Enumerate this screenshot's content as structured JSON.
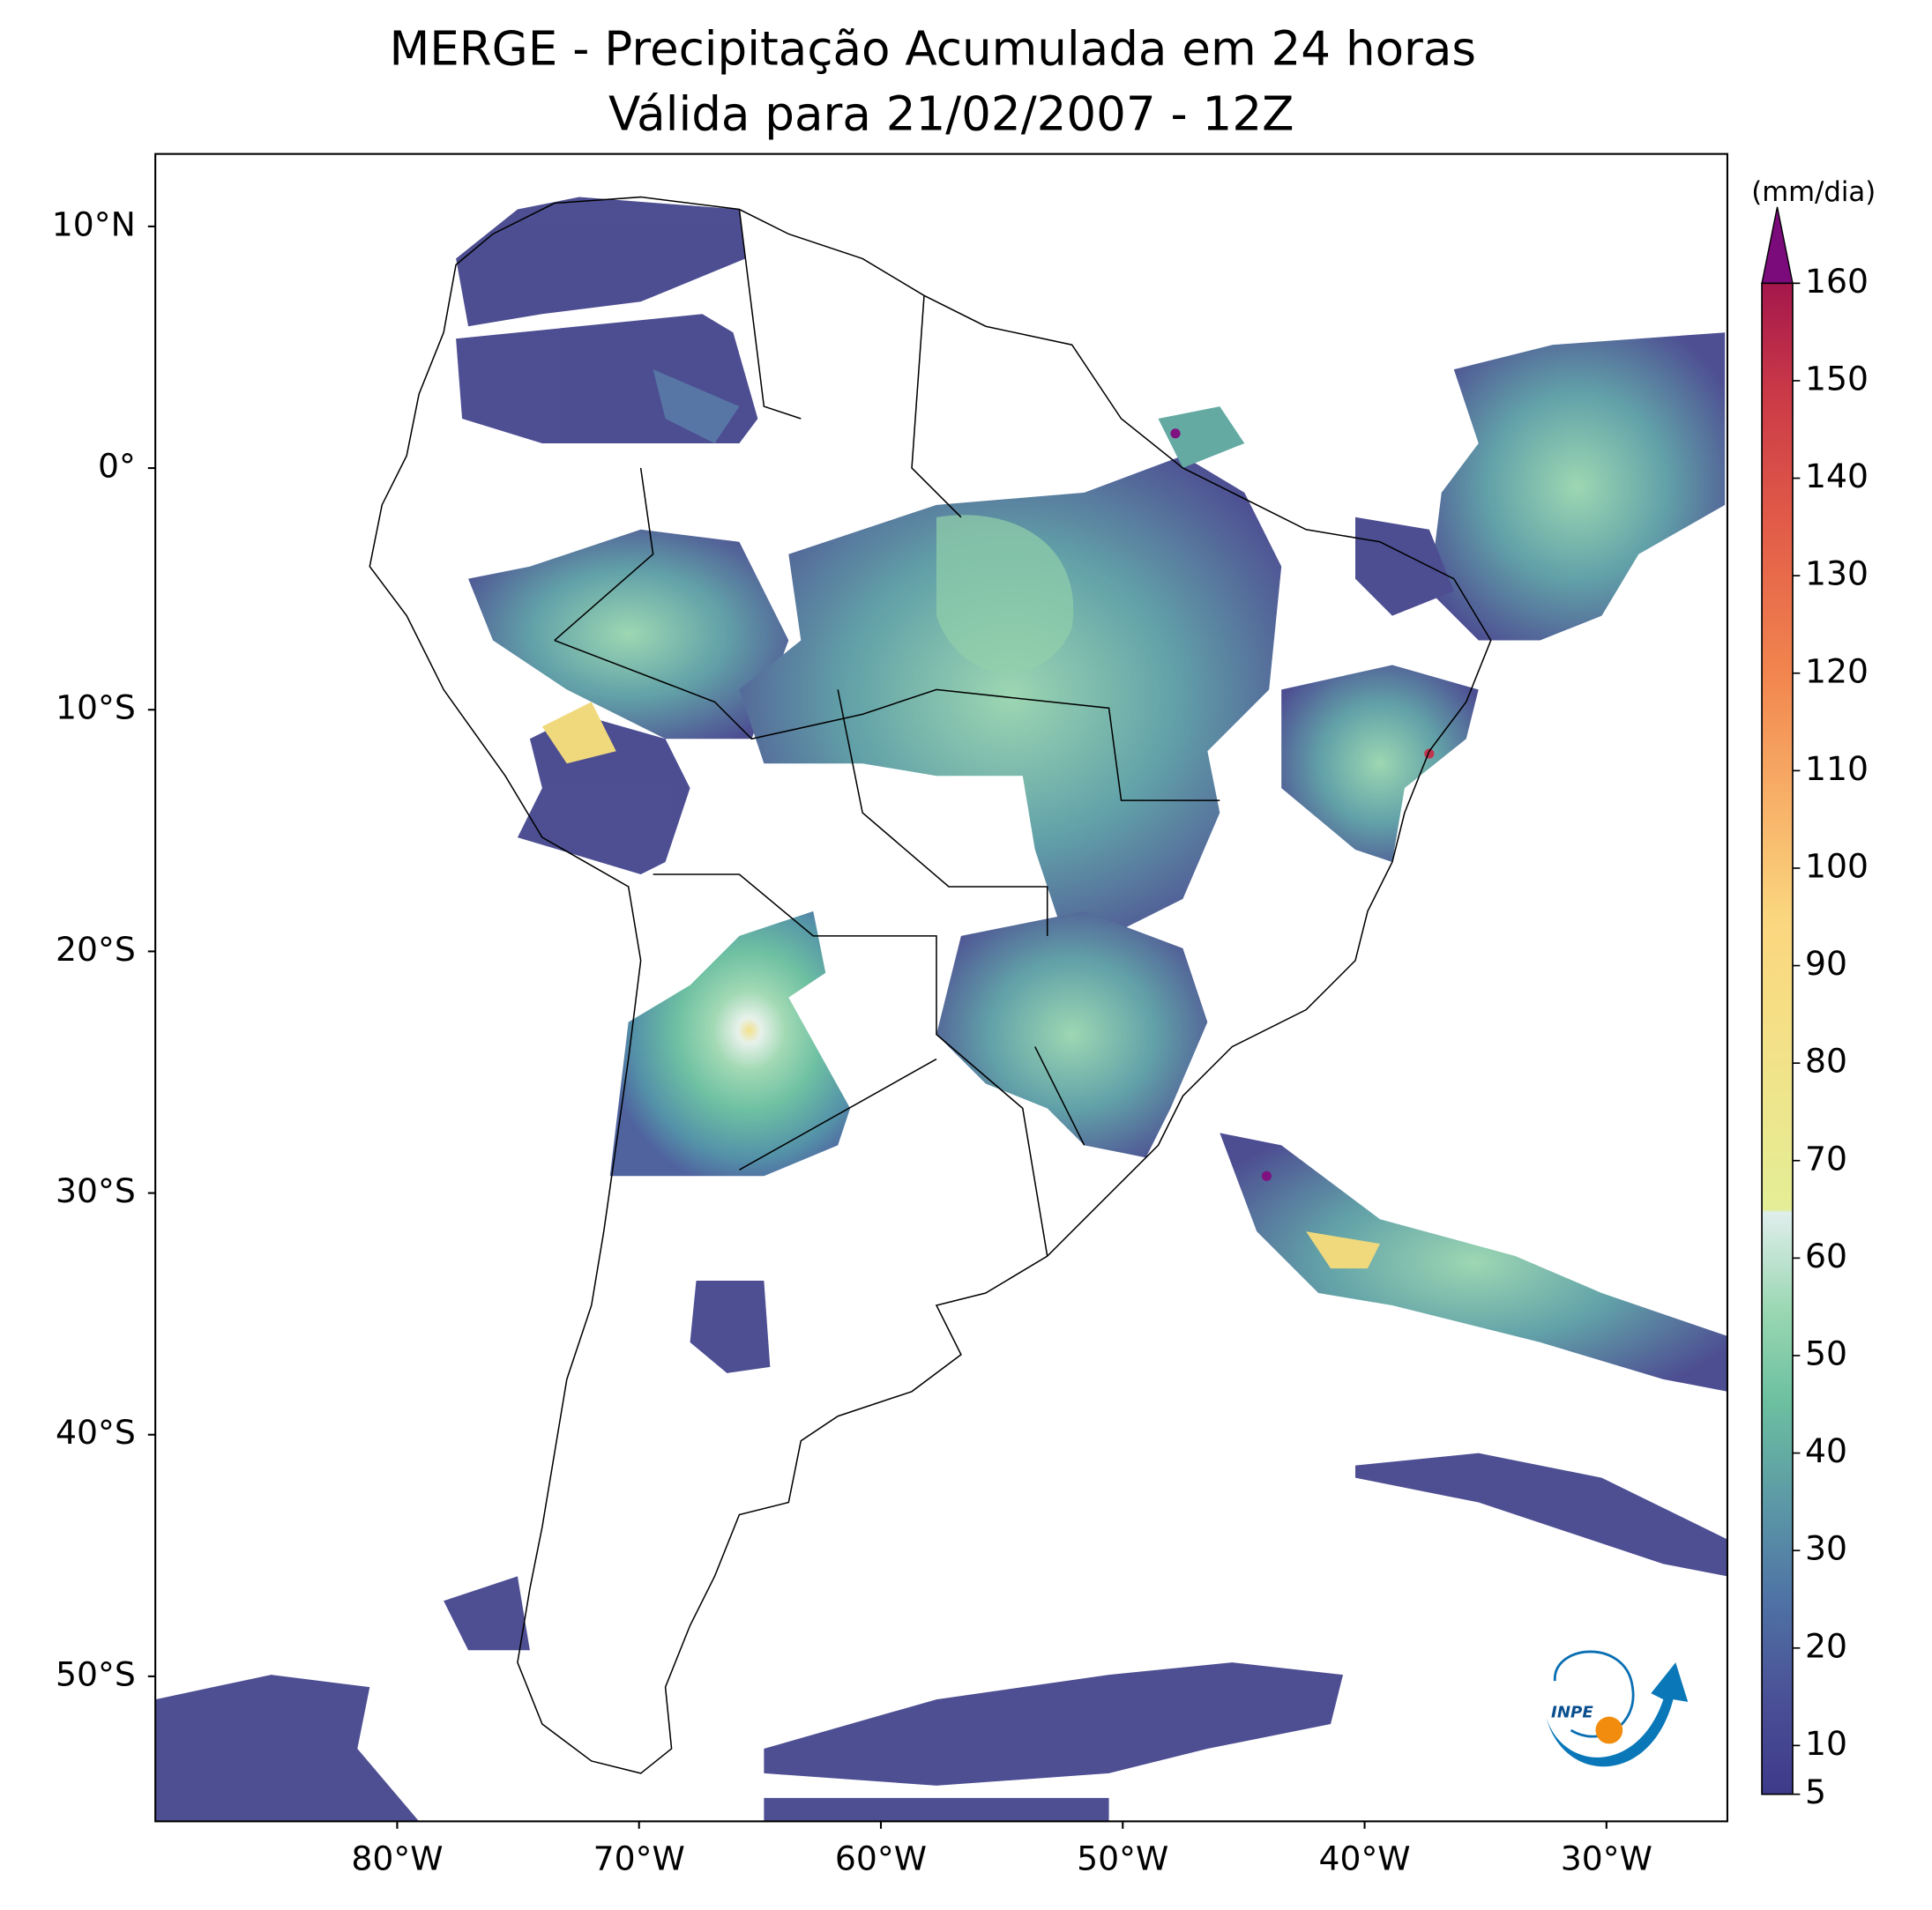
{
  "title": "MERGE - Precipitação Acumulada em 24 horas",
  "subtitle": "Válida para 21/02/2007 - 12Z",
  "map": {
    "lon_range": [
      -90,
      -25
    ],
    "lat_range": [
      -56,
      13
    ],
    "lat_ticks": [
      {
        "value": 10,
        "label": "10°N"
      },
      {
        "value": 0,
        "label": "0°"
      },
      {
        "value": -10,
        "label": "10°S"
      },
      {
        "value": -20,
        "label": "20°S"
      },
      {
        "value": -30,
        "label": "30°S"
      },
      {
        "value": -40,
        "label": "40°S"
      },
      {
        "value": -50,
        "label": "50°S"
      }
    ],
    "lon_ticks": [
      {
        "value": -80,
        "label": "80°W"
      },
      {
        "value": -70,
        "label": "70°W"
      },
      {
        "value": -60,
        "label": "60°W"
      },
      {
        "value": -50,
        "label": "50°W"
      },
      {
        "value": -40,
        "label": "40°W"
      },
      {
        "value": -30,
        "label": "30°W"
      }
    ]
  },
  "colorbar": {
    "label": "(mm/dia)",
    "range": [
      5,
      160
    ],
    "ticks": [
      5,
      10,
      20,
      30,
      40,
      50,
      60,
      70,
      80,
      90,
      100,
      110,
      120,
      130,
      140,
      150,
      160
    ],
    "extend": "max"
  },
  "logo": {
    "text": "INPE"
  }
}
